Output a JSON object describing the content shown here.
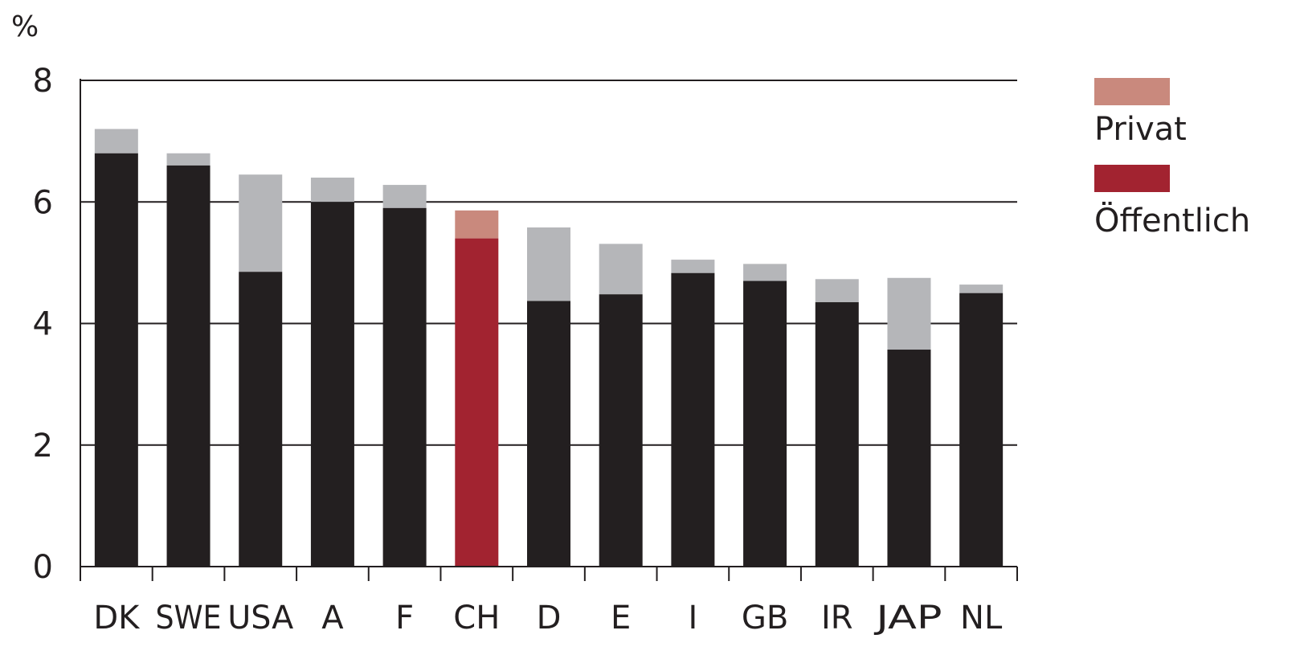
{
  "chart_data": {
    "type": "bar",
    "stacked": true,
    "unit_label": "%",
    "title": "",
    "xlabel": "",
    "ylabel": "%",
    "ylim": [
      0,
      8
    ],
    "yticks": [
      "0",
      "2",
      "4",
      "6",
      "8"
    ],
    "ytick_values": [
      0,
      2,
      4,
      6,
      8
    ],
    "grid": true,
    "legend_position": "right",
    "categories": [
      "DK",
      "SWE",
      "USA",
      "A",
      "F",
      "CH",
      "D",
      "E",
      "I",
      "GB",
      "IR",
      "JAP",
      "NL"
    ],
    "highlight_category": "CH",
    "series": [
      {
        "name": "Öffentlich",
        "values": [
          6.8,
          6.6,
          4.85,
          6.0,
          5.9,
          5.4,
          4.37,
          4.48,
          4.83,
          4.7,
          4.35,
          3.57,
          4.5
        ]
      },
      {
        "name": "Privat",
        "values": [
          0.4,
          0.2,
          1.6,
          0.4,
          0.38,
          0.46,
          1.21,
          0.83,
          0.22,
          0.28,
          0.38,
          1.18,
          0.14
        ]
      }
    ],
    "colors": {
      "public_default": "#231f20",
      "private_default": "#b5b6b9",
      "public_highlight": "#a22330",
      "private_highlight": "#c9897d",
      "axis": "#231f20"
    },
    "legend": [
      {
        "label": "Privat",
        "color": "#c9897d"
      },
      {
        "label": "Öffentlich",
        "color": "#a22330"
      }
    ]
  }
}
